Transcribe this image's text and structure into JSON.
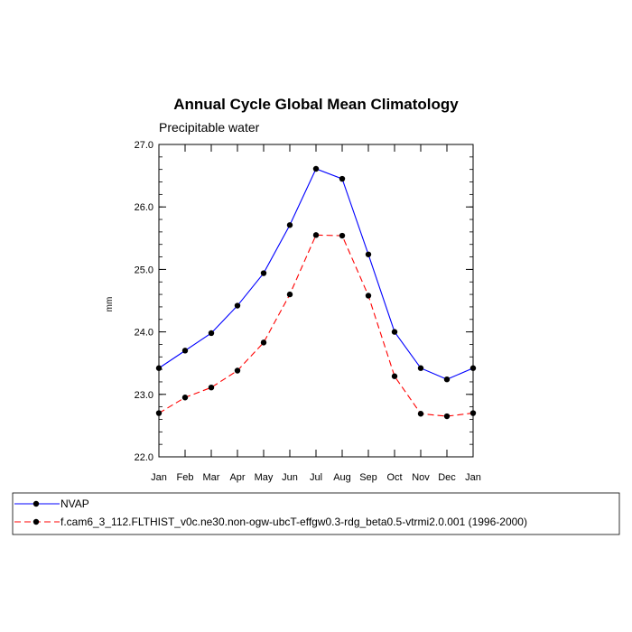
{
  "chart_data": {
    "type": "line",
    "title": "Annual Cycle Global Mean Climatology",
    "subtitle": "Precipitable water",
    "ylabel": "mm",
    "categories": [
      "Jan",
      "Feb",
      "Mar",
      "Apr",
      "May",
      "Jun",
      "Jul",
      "Aug",
      "Sep",
      "Oct",
      "Nov",
      "Dec",
      "Jan"
    ],
    "ylim": [
      22.0,
      27.0
    ],
    "yticks": [
      "22.0",
      "23.0",
      "24.0",
      "25.0",
      "26.0",
      "27.0"
    ],
    "grid": false,
    "legend_position": "bottom",
    "series": [
      {
        "name": "NVAP",
        "color": "#0000ff",
        "dash": "solid",
        "values": [
          23.42,
          23.7,
          23.98,
          24.42,
          24.94,
          25.71,
          26.61,
          26.45,
          25.24,
          24.0,
          23.42,
          23.24,
          23.42
        ]
      },
      {
        "name": "f.cam6_3_112.FLTHIST_v0c.ne30.non-ogw-ubcT-effgw0.3-rdg_beta0.5-vtrmi2.0.001 (1996-2000)",
        "color": "#ff0000",
        "dash": "dashed",
        "values": [
          22.7,
          22.95,
          23.11,
          23.38,
          23.83,
          24.6,
          25.55,
          25.54,
          24.58,
          23.29,
          22.69,
          22.65,
          22.7
        ]
      }
    ]
  }
}
